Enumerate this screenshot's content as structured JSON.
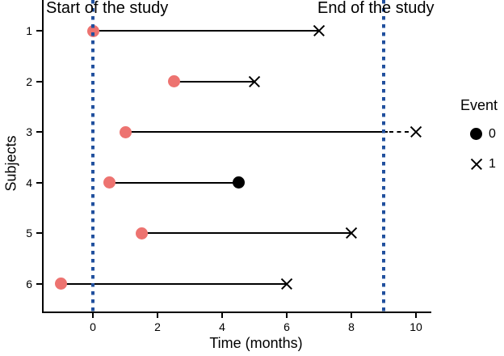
{
  "chart_data": {
    "type": "scatter",
    "title": "",
    "xlabel": "Time (months)",
    "ylabel": "Subjects",
    "xlim": [
      -1.55,
      10.45
    ],
    "x_ticks": [
      0,
      2,
      4,
      6,
      8,
      10
    ],
    "y_categories": [
      "1",
      "2",
      "3",
      "4",
      "5",
      "6"
    ],
    "grid": false,
    "legend_position": "right",
    "annotations": [
      {
        "text": "Start of the study",
        "x": 0
      },
      {
        "text": "End of the study",
        "x": 9
      }
    ],
    "study": {
      "start": 0,
      "end": 9
    },
    "subjects": [
      {
        "id": "1",
        "entry": 0,
        "exit": 7,
        "event": 1
      },
      {
        "id": "2",
        "entry": 2.5,
        "exit": 5,
        "event": 1
      },
      {
        "id": "3",
        "entry": 1,
        "exit": 10,
        "event": 1
      },
      {
        "id": "4",
        "entry": 0.5,
        "exit": 4.5,
        "event": 0
      },
      {
        "id": "5",
        "entry": 1.5,
        "exit": 8,
        "event": 1
      },
      {
        "id": "6",
        "entry": -1,
        "exit": 6,
        "event": 1
      }
    ],
    "colors": {
      "entry_dot": "#ED7370",
      "event_marker": "#000000",
      "study_line": "#21509E",
      "subject_line": "#000000"
    },
    "legend": {
      "title": "Event",
      "items": [
        {
          "marker": "circle",
          "label": "0"
        },
        {
          "marker": "cross",
          "label": "1"
        }
      ]
    }
  }
}
